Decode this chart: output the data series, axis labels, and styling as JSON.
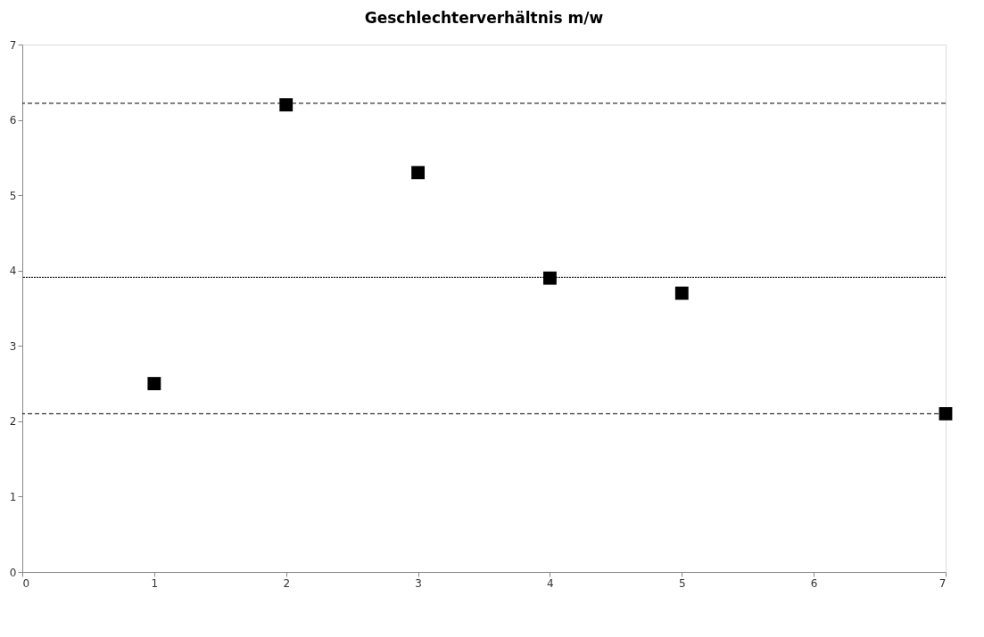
{
  "chart_data": {
    "type": "scatter",
    "title": "Geschlechterverhältnis m/w",
    "x": [
      1,
      2,
      3,
      4,
      5,
      7
    ],
    "values": [
      2.5,
      6.2,
      5.3,
      3.9,
      3.7,
      2.1
    ],
    "color": "#000000",
    "marker": "square",
    "xlim": [
      0,
      7
    ],
    "xticks": [
      0,
      1,
      2,
      3,
      4,
      5,
      6,
      7
    ],
    "ylim": [
      0,
      7
    ],
    "yticks": [
      0,
      1,
      2,
      3,
      4,
      5,
      6,
      7
    ],
    "grid": false,
    "ref_lines": [
      {
        "axis": "y",
        "value": 6.22,
        "line_style": "dashed",
        "color": "#000000"
      },
      {
        "axis": "y",
        "value": 3.91,
        "line_style": "dotted",
        "color": "#000000"
      },
      {
        "axis": "y",
        "value": 2.1,
        "line_style": "dashed",
        "color": "#000000"
      }
    ]
  }
}
